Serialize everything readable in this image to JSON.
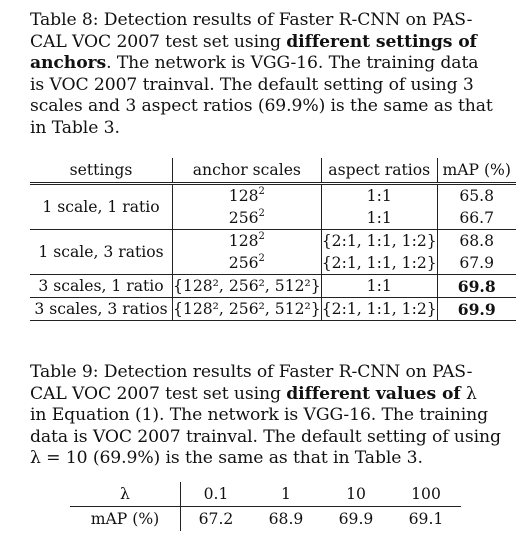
{
  "table8": {
    "caption_prefix": "Table 8: Detection results of Faster R-CNN on PAS-",
    "caption_line2": "CAL VOC 2007 test set using ",
    "caption_bold1": "different settings of",
    "caption_line3_bold": "anchors",
    "caption_line3_rest": ". The network is VGG-16. The training data",
    "caption_line4": "is VOC 2007 trainval. The default setting of using 3",
    "caption_line5": "scales and 3 aspect ratios (69.9%) is the same as that",
    "caption_line6": "in Table 3.",
    "headers": [
      "settings",
      "anchor scales",
      "aspect ratios",
      "mAP (%)"
    ],
    "rows": [
      {
        "setting": "1 scale, 1 ratio",
        "scale": "128",
        "ratio": "1:1",
        "map": "65.8"
      },
      {
        "setting": "",
        "scale": "256",
        "ratio": "1:1",
        "map": "66.7"
      },
      {
        "setting": "1 scale, 3 ratios",
        "scale": "128",
        "ratio": "{2:1, 1:1, 1:2}",
        "map": "68.8"
      },
      {
        "setting": "",
        "scale": "256",
        "ratio": "{2:1, 1:1, 1:2}",
        "map": "67.9"
      },
      {
        "setting": "3 scales, 1 ratio",
        "scale_list": "{128², 256², 512²}",
        "ratio": "1:1",
        "map": "69.8"
      },
      {
        "setting": "3 scales, 3 ratios",
        "scale_list": "{128², 256², 512²}",
        "ratio": "{2:1, 1:1, 1:2}",
        "map": "69.9"
      }
    ],
    "exponent": "2"
  },
  "table9": {
    "caption_line1": "Table 9: Detection results of Faster R-CNN on PAS-",
    "caption_line2a": "CAL VOC 2007 test set using ",
    "caption_line2_bold": "different values of",
    "caption_lambda": "λ",
    "caption_line3": "in Equation (1). The network is VGG-16. The training",
    "caption_line4": "data is VOC 2007 trainval. The default setting of using",
    "caption_line5": "λ = 10 (69.9%) is the same as that in Table 3.",
    "header_label": "λ",
    "values": [
      "0.1",
      "1",
      "10",
      "100"
    ],
    "row_label": "mAP (%)",
    "map": [
      "67.2",
      "68.9",
      "69.9",
      "69.1"
    ]
  }
}
